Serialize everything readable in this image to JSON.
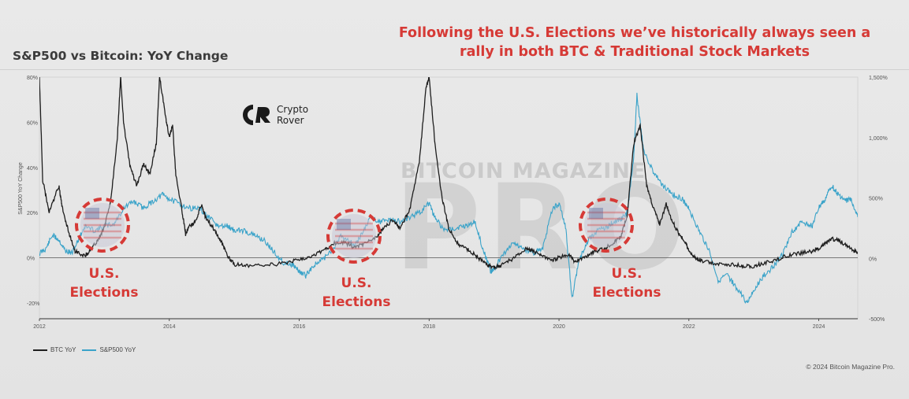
{
  "headline": {
    "line1": "Following the U.S. Elections we’ve historically always seen a",
    "line2": "rally in both BTC & Traditional Stock Markets"
  },
  "logo": {
    "line1": "Crypto",
    "line2": "Rover"
  },
  "watermark": {
    "top": "BITCOIN MAGAZINE",
    "big": "PRO"
  },
  "elections": [
    {
      "line1": "U.S.",
      "line2": "Elections"
    },
    {
      "line1": "U.S.",
      "line2": "Elections"
    },
    {
      "line1": "U.S.",
      "line2": "Elections"
    }
  ],
  "legend": {
    "btc": "BTC YoY",
    "spx": "S&P500 YoY"
  },
  "copyright": "© 2024 Bitcoin Magazine Pro.",
  "colors": {
    "btc": "#1e1e1e",
    "spx": "#3aa3c9",
    "accent": "#d63a36"
  },
  "chart_data": {
    "type": "line",
    "title": "S&P500 vs Bitcoin: YoY Change",
    "ylabel": "S&P500 YoY Change",
    "x_ticks": [
      "2012",
      "2014",
      "2016",
      "2018",
      "2020",
      "2022",
      "2024"
    ],
    "x_range": [
      2012.0,
      2024.6
    ],
    "left_axis": {
      "ticks": [
        "80%",
        "60%",
        "40%",
        "20%",
        "0%",
        "-20%"
      ],
      "range": [
        -27,
        80
      ]
    },
    "right_axis": {
      "ticks": [
        "1,500%",
        "1,000%",
        "500%",
        "0%",
        "-500%"
      ],
      "range": [
        -500,
        1500
      ]
    },
    "election_years": [
      2012.85,
      2016.85,
      2020.85
    ],
    "series": [
      {
        "name": "BTC YoY",
        "axis": "right",
        "points": [
          [
            2012.0,
            1500
          ],
          [
            2012.05,
            650
          ],
          [
            2012.15,
            380
          ],
          [
            2012.3,
            600
          ],
          [
            2012.35,
            420
          ],
          [
            2012.45,
            220
          ],
          [
            2012.55,
            60
          ],
          [
            2012.7,
            20
          ],
          [
            2012.8,
            80
          ],
          [
            2012.9,
            150
          ],
          [
            2013.0,
            260
          ],
          [
            2013.1,
            480
          ],
          [
            2013.2,
            1000
          ],
          [
            2013.25,
            1500
          ],
          [
            2013.3,
            1100
          ],
          [
            2013.4,
            750
          ],
          [
            2013.5,
            600
          ],
          [
            2013.6,
            780
          ],
          [
            2013.7,
            700
          ],
          [
            2013.8,
            950
          ],
          [
            2013.85,
            1500
          ],
          [
            2013.95,
            1150
          ],
          [
            2014.0,
            1000
          ],
          [
            2014.05,
            1100
          ],
          [
            2014.1,
            700
          ],
          [
            2014.2,
            380
          ],
          [
            2014.25,
            200
          ],
          [
            2014.3,
            260
          ],
          [
            2014.4,
            300
          ],
          [
            2014.5,
            450
          ],
          [
            2014.55,
            350
          ],
          [
            2014.7,
            230
          ],
          [
            2014.8,
            140
          ],
          [
            2014.9,
            20
          ],
          [
            2015.0,
            -50
          ],
          [
            2015.2,
            -60
          ],
          [
            2015.5,
            -55
          ],
          [
            2015.8,
            -40
          ],
          [
            2016.0,
            -10
          ],
          [
            2016.2,
            20
          ],
          [
            2016.4,
            70
          ],
          [
            2016.5,
            120
          ],
          [
            2016.7,
            130
          ],
          [
            2016.85,
            90
          ],
          [
            2017.0,
            120
          ],
          [
            2017.2,
            180
          ],
          [
            2017.3,
            250
          ],
          [
            2017.45,
            320
          ],
          [
            2017.55,
            250
          ],
          [
            2017.7,
            400
          ],
          [
            2017.85,
            800
          ],
          [
            2017.95,
            1400
          ],
          [
            2018.0,
            1500
          ],
          [
            2018.1,
            900
          ],
          [
            2018.2,
            500
          ],
          [
            2018.3,
            250
          ],
          [
            2018.45,
            120
          ],
          [
            2018.6,
            70
          ],
          [
            2018.75,
            10
          ],
          [
            2018.9,
            -60
          ],
          [
            2019.0,
            -70
          ],
          [
            2019.1,
            -60
          ],
          [
            2019.3,
            0
          ],
          [
            2019.5,
            80
          ],
          [
            2019.6,
            60
          ],
          [
            2019.75,
            20
          ],
          [
            2019.9,
            -20
          ],
          [
            2020.0,
            10
          ],
          [
            2020.15,
            30
          ],
          [
            2020.25,
            -30
          ],
          [
            2020.4,
            10
          ],
          [
            2020.55,
            60
          ],
          [
            2020.7,
            80
          ],
          [
            2020.85,
            130
          ],
          [
            2020.95,
            180
          ],
          [
            2021.05,
            350
          ],
          [
            2021.15,
            950
          ],
          [
            2021.25,
            1100
          ],
          [
            2021.35,
            600
          ],
          [
            2021.45,
            420
          ],
          [
            2021.55,
            280
          ],
          [
            2021.65,
            450
          ],
          [
            2021.75,
            300
          ],
          [
            2021.85,
            200
          ],
          [
            2021.95,
            130
          ],
          [
            2022.0,
            60
          ],
          [
            2022.1,
            0
          ],
          [
            2022.2,
            -20
          ],
          [
            2022.4,
            -40
          ],
          [
            2022.6,
            -50
          ],
          [
            2022.8,
            -60
          ],
          [
            2022.95,
            -70
          ],
          [
            2023.1,
            -50
          ],
          [
            2023.3,
            -20
          ],
          [
            2023.5,
            20
          ],
          [
            2023.7,
            40
          ],
          [
            2023.9,
            60
          ],
          [
            2024.0,
            80
          ],
          [
            2024.1,
            120
          ],
          [
            2024.2,
            160
          ],
          [
            2024.3,
            150
          ],
          [
            2024.45,
            100
          ],
          [
            2024.55,
            60
          ],
          [
            2024.6,
            50
          ]
        ]
      },
      {
        "name": "S&P500 YoY",
        "axis": "left",
        "points": [
          [
            2012.0,
            2
          ],
          [
            2012.1,
            4
          ],
          [
            2012.2,
            10
          ],
          [
            2012.3,
            8
          ],
          [
            2012.4,
            3
          ],
          [
            2012.5,
            2
          ],
          [
            2012.6,
            8
          ],
          [
            2012.7,
            14
          ],
          [
            2012.85,
            12
          ],
          [
            2013.0,
            14
          ],
          [
            2013.15,
            15
          ],
          [
            2013.3,
            22
          ],
          [
            2013.45,
            25
          ],
          [
            2013.6,
            22
          ],
          [
            2013.75,
            25
          ],
          [
            2013.9,
            28
          ],
          [
            2014.0,
            26
          ],
          [
            2014.15,
            24
          ],
          [
            2014.3,
            22
          ],
          [
            2014.45,
            22
          ],
          [
            2014.6,
            18
          ],
          [
            2014.75,
            14
          ],
          [
            2014.9,
            14
          ],
          [
            2015.0,
            12
          ],
          [
            2015.15,
            12
          ],
          [
            2015.3,
            10
          ],
          [
            2015.45,
            8
          ],
          [
            2015.6,
            3
          ],
          [
            2015.75,
            -2
          ],
          [
            2015.9,
            -3
          ],
          [
            2016.0,
            -6
          ],
          [
            2016.1,
            -8
          ],
          [
            2016.2,
            -4
          ],
          [
            2016.35,
            -1
          ],
          [
            2016.5,
            3
          ],
          [
            2016.65,
            10
          ],
          [
            2016.8,
            7
          ],
          [
            2016.85,
            5
          ],
          [
            2016.95,
            10
          ],
          [
            2017.1,
            18
          ],
          [
            2017.25,
            16
          ],
          [
            2017.4,
            17
          ],
          [
            2017.55,
            16
          ],
          [
            2017.7,
            18
          ],
          [
            2017.85,
            20
          ],
          [
            2018.0,
            24
          ],
          [
            2018.1,
            17
          ],
          [
            2018.25,
            12
          ],
          [
            2018.4,
            13
          ],
          [
            2018.55,
            14
          ],
          [
            2018.7,
            16
          ],
          [
            2018.85,
            2
          ],
          [
            2018.95,
            -6
          ],
          [
            2019.0,
            -5
          ],
          [
            2019.15,
            2
          ],
          [
            2019.3,
            7
          ],
          [
            2019.45,
            4
          ],
          [
            2019.6,
            2
          ],
          [
            2019.75,
            4
          ],
          [
            2019.9,
            22
          ],
          [
            2020.0,
            24
          ],
          [
            2020.1,
            14
          ],
          [
            2020.2,
            -18
          ],
          [
            2020.3,
            -2
          ],
          [
            2020.45,
            8
          ],
          [
            2020.6,
            12
          ],
          [
            2020.75,
            14
          ],
          [
            2020.85,
            16
          ],
          [
            2020.95,
            17
          ],
          [
            2021.05,
            20
          ],
          [
            2021.15,
            44
          ],
          [
            2021.2,
            72
          ],
          [
            2021.3,
            48
          ],
          [
            2021.45,
            38
          ],
          [
            2021.6,
            32
          ],
          [
            2021.75,
            28
          ],
          [
            2021.9,
            26
          ],
          [
            2022.0,
            22
          ],
          [
            2022.15,
            12
          ],
          [
            2022.3,
            4
          ],
          [
            2022.45,
            -10
          ],
          [
            2022.6,
            -8
          ],
          [
            2022.75,
            -14
          ],
          [
            2022.9,
            -20
          ],
          [
            2023.0,
            -14
          ],
          [
            2023.15,
            -8
          ],
          [
            2023.3,
            -4
          ],
          [
            2023.45,
            2
          ],
          [
            2023.6,
            12
          ],
          [
            2023.75,
            16
          ],
          [
            2023.9,
            14
          ],
          [
            2024.0,
            22
          ],
          [
            2024.1,
            26
          ],
          [
            2024.2,
            32
          ],
          [
            2024.3,
            28
          ],
          [
            2024.4,
            25
          ],
          [
            2024.5,
            26
          ],
          [
            2024.6,
            18
          ]
        ]
      }
    ]
  }
}
